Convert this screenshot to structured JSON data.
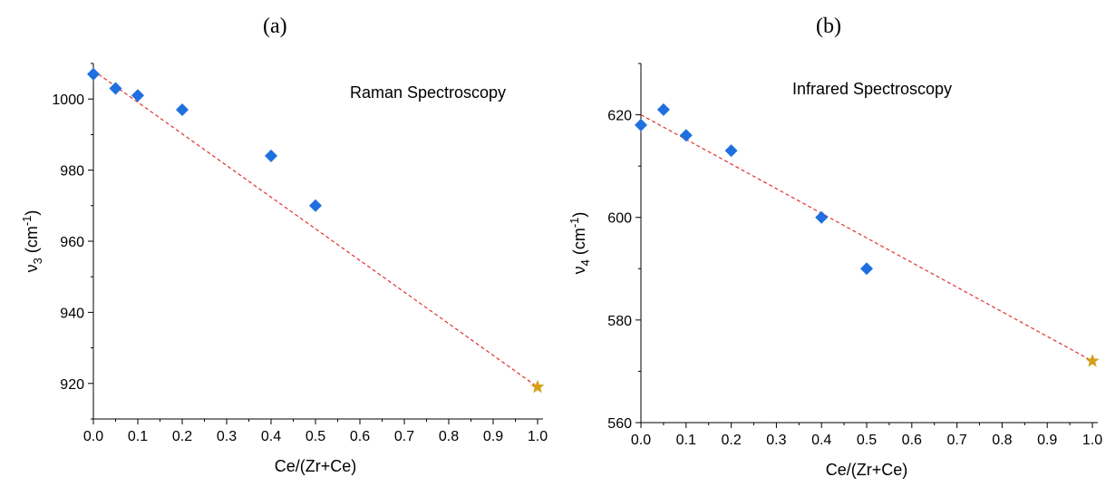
{
  "panels": [
    {
      "label": "(a)"
    },
    {
      "label": "(b)"
    }
  ],
  "colors": {
    "marker": "#1f6fe0",
    "fit_line": "#e03030",
    "star": "#d4a017",
    "axis": "#000000"
  },
  "chart_data": [
    {
      "type": "scatter",
      "panel": "(a)",
      "annotation": "Raman Spectroscopy",
      "xlabel": "Ce/(Zr+Ce)",
      "ylabel_main": "ν",
      "ylabel_sub": "3",
      "ylabel_unit": " (cm",
      "ylabel_sup": "-1",
      "ylabel_close": ")",
      "xlim": [
        0.0,
        1.0
      ],
      "ylim": [
        910,
        1010
      ],
      "xticks": [
        "0.0",
        "0.1",
        "0.2",
        "0.3",
        "0.4",
        "0.5",
        "0.6",
        "0.7",
        "0.8",
        "0.9",
        "1.0"
      ],
      "yticks": [
        "920",
        "940",
        "960",
        "980",
        "1000"
      ],
      "series": [
        {
          "marker": "diamond",
          "x": [
            0.0,
            0.05,
            0.1,
            0.2,
            0.4,
            0.5
          ],
          "y": [
            1007,
            1003,
            1001,
            997,
            984,
            970
          ]
        },
        {
          "marker": "star",
          "x": [
            1.0
          ],
          "y": [
            919
          ]
        }
      ],
      "fit_line": {
        "style": "dashed",
        "x": [
          0.0,
          1.0
        ],
        "y": [
          1008,
          919
        ]
      }
    },
    {
      "type": "scatter",
      "panel": "(b)",
      "annotation": "Infrared Spectroscopy",
      "xlabel": "Ce/(Zr+Ce)",
      "ylabel_main": "ν",
      "ylabel_sub": "4",
      "ylabel_unit": " (cm",
      "ylabel_sup": "-1",
      "ylabel_close": ")",
      "xlim": [
        0.0,
        1.0
      ],
      "ylim": [
        560,
        630
      ],
      "xticks": [
        "0.0",
        "0.1",
        "0.2",
        "0.3",
        "0.4",
        "0.5",
        "0.6",
        "0.7",
        "0.8",
        "0.9",
        "1.0"
      ],
      "yticks": [
        "560",
        "580",
        "600",
        "620"
      ],
      "series": [
        {
          "marker": "diamond",
          "x": [
            0.0,
            0.05,
            0.1,
            0.2,
            0.4,
            0.5
          ],
          "y": [
            618,
            621,
            616,
            613,
            600,
            590
          ]
        },
        {
          "marker": "star",
          "x": [
            1.0
          ],
          "y": [
            572
          ]
        }
      ],
      "fit_line": {
        "style": "dashed",
        "x": [
          0.0,
          1.0
        ],
        "y": [
          620,
          572
        ]
      }
    }
  ]
}
